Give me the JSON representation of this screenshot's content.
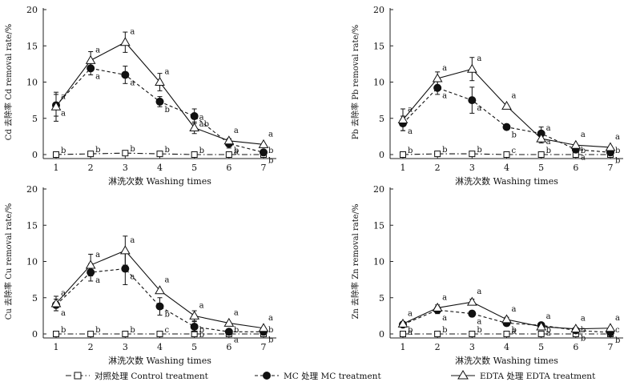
{
  "legend": [
    {
      "label": "对照处理 Control treatment",
      "marker": "square-open",
      "dash": "dashdot"
    },
    {
      "label": "MC 处理 MC treatment",
      "marker": "circle-filled",
      "dash": "dashed"
    },
    {
      "label": "EDTA 处理 EDTA treatment",
      "marker": "triangle-open",
      "dash": "solid"
    }
  ],
  "chart_data": [
    {
      "type": "line",
      "xlabel": "淋洗次数 Washing times",
      "ylabel": "Cd 去除率 Cd removal rate/%",
      "x": [
        1,
        2,
        3,
        4,
        5,
        6,
        7
      ],
      "ylim": [
        0,
        20
      ],
      "yticks": [
        0,
        5,
        10,
        15,
        20
      ],
      "series": [
        {
          "name": "对照处理 Control treatment",
          "marker": "square-open",
          "dash": "dashdot",
          "values": [
            0,
            0.1,
            0.2,
            0.1,
            0,
            0,
            0
          ],
          "errors": [
            0,
            0,
            0,
            0,
            0,
            0,
            0
          ],
          "letters": [
            "b",
            "b",
            "b",
            "b",
            "b",
            "b",
            "b"
          ]
        },
        {
          "name": "MC 处理 MC treatment",
          "marker": "circle-filled",
          "dash": "dashed",
          "values": [
            6.8,
            11.9,
            11.0,
            7.3,
            5.3,
            1.5,
            0.3
          ],
          "errors": [
            1.5,
            0.9,
            1.2,
            0.7,
            1.0,
            0.6,
            0
          ],
          "letters": [
            "a",
            "a",
            "a",
            "b",
            "ab",
            "a",
            "b"
          ]
        },
        {
          "name": "EDTA 处理 EDTA treatment",
          "marker": "triangle-open",
          "dash": "solid",
          "values": [
            6.6,
            13.0,
            15.5,
            10.0,
            3.7,
            1.9,
            1.4
          ],
          "errors": [
            2.0,
            1.2,
            1.4,
            1.2,
            0.8,
            0.3,
            0
          ],
          "letters": [
            "a",
            "a",
            "a",
            "a",
            "a",
            "a",
            "a"
          ]
        }
      ]
    },
    {
      "type": "line",
      "xlabel": "淋洗次数 Washing times",
      "ylabel": "Pb 去除率 Pb removal rate/%",
      "x": [
        1,
        2,
        3,
        4,
        5,
        6,
        7
      ],
      "ylim": [
        0,
        20
      ],
      "yticks": [
        0,
        5,
        10,
        15,
        20
      ],
      "series": [
        {
          "name": "对照处理 Control treatment",
          "marker": "square-open",
          "dash": "dashdot",
          "values": [
            0,
            0.1,
            0.1,
            0,
            0,
            0,
            0
          ],
          "errors": [
            0,
            0,
            0,
            0,
            0,
            0,
            0
          ],
          "letters": [
            "b",
            "b",
            "b",
            "c",
            "b",
            "b",
            "b"
          ]
        },
        {
          "name": "MC 处理 MC treatment",
          "marker": "circle-filled",
          "dash": "dashed",
          "values": [
            4.3,
            9.2,
            7.5,
            3.8,
            2.9,
            0.7,
            0.3
          ],
          "errors": [
            1.0,
            0.9,
            1.8,
            0,
            0.9,
            0,
            0
          ],
          "letters": [
            "a",
            "a",
            "a",
            "b",
            "a",
            "a",
            "b"
          ]
        },
        {
          "name": "EDTA 处理 EDTA treatment",
          "marker": "triangle-open",
          "dash": "solid",
          "values": [
            4.8,
            10.5,
            11.8,
            6.7,
            2.2,
            1.3,
            1.0
          ],
          "errors": [
            1.5,
            0.9,
            1.6,
            0,
            0.6,
            0,
            0
          ],
          "letters": [
            "a",
            "a",
            "a",
            "a",
            "a",
            "a",
            "a"
          ]
        }
      ]
    },
    {
      "type": "line",
      "xlabel": "淋洗次数 Washing times",
      "ylabel": "Cu 去除率 Cu removal rate/%",
      "x": [
        1,
        2,
        3,
        4,
        5,
        6,
        7
      ],
      "ylim": [
        0,
        20
      ],
      "yticks": [
        0,
        5,
        10,
        15,
        20
      ],
      "series": [
        {
          "name": "对照处理 Control treatment",
          "marker": "square-open",
          "dash": "dashdot",
          "values": [
            0,
            0,
            0,
            0,
            0,
            0,
            0
          ],
          "errors": [
            0,
            0,
            0,
            0,
            0,
            0,
            0
          ],
          "letters": [
            "b",
            "b",
            "b",
            "c",
            "b",
            "b",
            "b"
          ]
        },
        {
          "name": "MC 处理 MC treatment",
          "marker": "circle-filled",
          "dash": "dashed",
          "values": [
            4.0,
            8.5,
            9.0,
            3.8,
            1.0,
            0.3,
            0.3
          ],
          "errors": [
            0.8,
            1.2,
            2.2,
            1.2,
            0.7,
            0,
            0
          ],
          "letters": [
            "a",
            "a",
            "a",
            "b",
            "b",
            "a",
            "b"
          ]
        },
        {
          "name": "EDTA 处理 EDTA treatment",
          "marker": "triangle-open",
          "dash": "solid",
          "values": [
            4.2,
            9.5,
            11.5,
            6.0,
            2.5,
            1.5,
            0.8
          ],
          "errors": [
            1.0,
            1.5,
            2.0,
            0,
            0.7,
            0,
            0
          ],
          "letters": [
            "a",
            "a",
            "a",
            "a",
            "a",
            "a",
            "a"
          ]
        }
      ]
    },
    {
      "type": "line",
      "xlabel": "淋洗次数 Washing times",
      "ylabel": "Zn 去除率 Zn removal rate/%",
      "x": [
        1,
        2,
        3,
        4,
        5,
        6,
        7
      ],
      "ylim": [
        0,
        20
      ],
      "yticks": [
        0,
        5,
        10,
        15,
        20
      ],
      "series": [
        {
          "name": "对照处理 Control treatment",
          "marker": "square-open",
          "dash": "dashdot",
          "values": [
            0,
            0,
            0,
            0,
            0,
            0,
            0
          ],
          "errors": [
            0,
            0,
            0,
            0,
            0,
            0,
            0
          ],
          "letters": [
            "b",
            "b",
            "b",
            "b",
            "b",
            "b",
            "c"
          ]
        },
        {
          "name": "MC 处理 MC treatment",
          "marker": "circle-filled",
          "dash": "dashed",
          "values": [
            1.3,
            3.3,
            2.8,
            1.5,
            1.2,
            0.5,
            0.2
          ],
          "errors": [
            0.3,
            0.5,
            0.4,
            0.3,
            0.3,
            0,
            0
          ],
          "letters": [
            "a",
            "a",
            "a",
            "a",
            "a",
            "b",
            "b"
          ]
        },
        {
          "name": "EDTA 处理 EDTA treatment",
          "marker": "triangle-open",
          "dash": "solid",
          "values": [
            1.4,
            3.6,
            4.4,
            2.0,
            1.0,
            0.7,
            0.8
          ],
          "errors": [
            0.3,
            0.4,
            0.4,
            0.3,
            0.2,
            0,
            0
          ],
          "letters": [
            "a",
            "a",
            "a",
            "a",
            "a",
            "a",
            "a"
          ]
        }
      ]
    }
  ]
}
